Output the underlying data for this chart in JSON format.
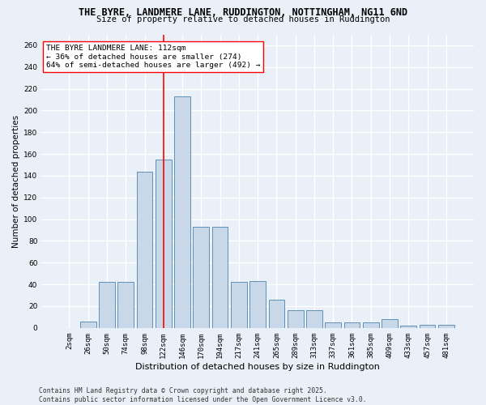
{
  "title_line1": "THE BYRE, LANDMERE LANE, RUDDINGTON, NOTTINGHAM, NG11 6ND",
  "title_line2": "Size of property relative to detached houses in Ruddington",
  "xlabel": "Distribution of detached houses by size in Ruddington",
  "ylabel": "Number of detached properties",
  "categories": [
    "2sqm",
    "26sqm",
    "50sqm",
    "74sqm",
    "98sqm",
    "122sqm",
    "146sqm",
    "170sqm",
    "194sqm",
    "217sqm",
    "241sqm",
    "265sqm",
    "289sqm",
    "313sqm",
    "337sqm",
    "361sqm",
    "385sqm",
    "409sqm",
    "433sqm",
    "457sqm",
    "481sqm"
  ],
  "bar_values": [
    0,
    6,
    42,
    42,
    144,
    155,
    213,
    93,
    93,
    42,
    43,
    26,
    16,
    16,
    5,
    5,
    5,
    8,
    2,
    3,
    3
  ],
  "bar_color": "#c8d8e8",
  "bar_edge_color": "#6090b8",
  "vline_x": 5.0,
  "vline_color": "red",
  "annotation_text": "THE BYRE LANDMERE LANE: 112sqm\n← 36% of detached houses are smaller (274)\n64% of semi-detached houses are larger (492) →",
  "annotation_box_color": "white",
  "annotation_box_edge": "red",
  "ylim": [
    0,
    270
  ],
  "yticks": [
    0,
    20,
    40,
    60,
    80,
    100,
    120,
    140,
    160,
    180,
    200,
    220,
    240,
    260
  ],
  "footer_line1": "Contains HM Land Registry data © Crown copyright and database right 2025.",
  "footer_line2": "Contains public sector information licensed under the Open Government Licence v3.0.",
  "bg_color": "#eaf0f8",
  "grid_color": "white",
  "bar_width": 0.85,
  "title_fontsize": 8.5,
  "subtitle_fontsize": 7.5,
  "ylabel_fontsize": 7.5,
  "xlabel_fontsize": 8.0,
  "tick_fontsize": 6.5,
  "annot_fontsize": 6.8,
  "footer_fontsize": 5.8
}
